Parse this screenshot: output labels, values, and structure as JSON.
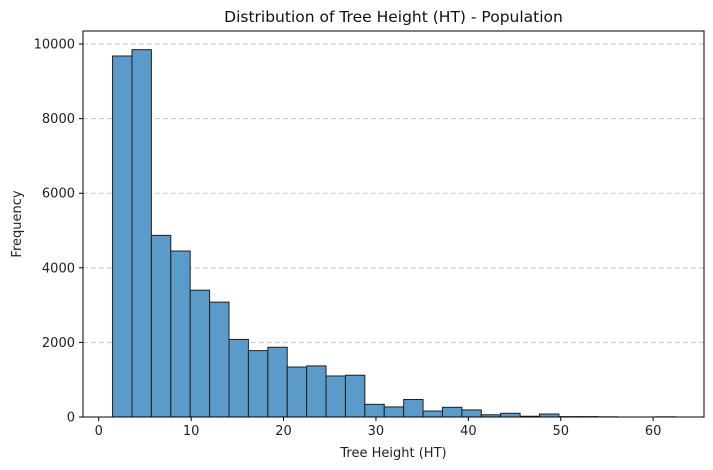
{
  "chart_data": {
    "type": "bar",
    "subtype": "histogram",
    "title": "Distribution of Tree Height (HT) - Population",
    "xlabel": "Tree Height (HT)",
    "ylabel": "Frequency",
    "xlim": [
      -1.7,
      65.5
    ],
    "ylim": [
      0,
      10350
    ],
    "x_ticks": [
      0,
      10,
      20,
      30,
      40,
      50,
      60
    ],
    "y_ticks": [
      0,
      2000,
      4000,
      6000,
      8000,
      10000
    ],
    "bin_edges": [
      1.5,
      3.6,
      5.7,
      7.8,
      9.9,
      12.0,
      14.1,
      16.2,
      18.3,
      20.4,
      22.5,
      24.6,
      26.7,
      28.8,
      30.9,
      33.0,
      35.1,
      37.2,
      39.3,
      41.4,
      43.5,
      45.6,
      47.7,
      49.8,
      51.9,
      54.0,
      56.1,
      58.2,
      60.3,
      62.4
    ],
    "values": [
      9680,
      9850,
      4870,
      4450,
      3400,
      3080,
      2080,
      1780,
      1870,
      1340,
      1370,
      1100,
      1120,
      340,
      270,
      470,
      160,
      260,
      190,
      60,
      100,
      20,
      80,
      10,
      10,
      5,
      0,
      0,
      5
    ],
    "grid": "y-dashed",
    "bar_color": "#5b9bc9",
    "edge_color": "#1f1f1f",
    "grid_color": "#c8c8c8"
  }
}
